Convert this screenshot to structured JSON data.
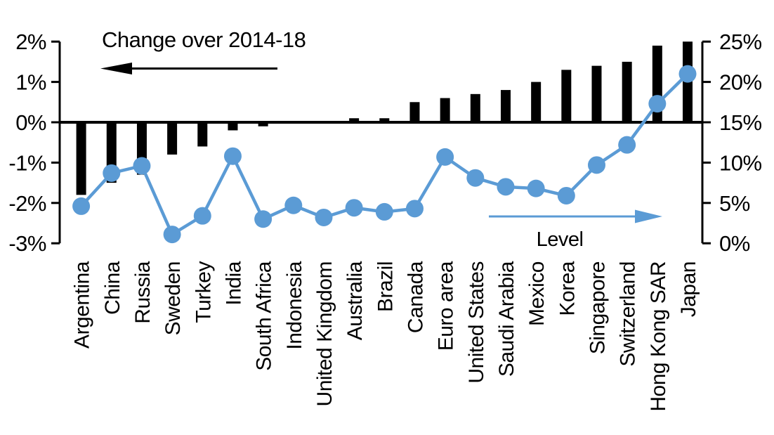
{
  "page": {
    "background": "#FFFFFF"
  },
  "chart_data": {
    "type": "combo",
    "title": "",
    "categories": [
      "Argentina",
      "China",
      "Russia",
      "Sweden",
      "Turkey",
      "India",
      "South Africa",
      "Indonesia",
      "United Kingdom",
      "Australia",
      "Brazil",
      "Canada",
      "Euro area",
      "United States",
      "Saudi Arabia",
      "Mexico",
      "Korea",
      "Singapore",
      "Switzerland",
      "Hong Kong SAR",
      "Japan"
    ],
    "series": [
      {
        "name": "Change over 2014-18",
        "type": "bar",
        "axis": "left",
        "color": "#000000",
        "values": [
          -1.8,
          -1.5,
          -1.3,
          -0.8,
          -0.6,
          -0.2,
          -0.1,
          0,
          0,
          0.1,
          0.1,
          0.5,
          0.6,
          0.7,
          0.8,
          1.0,
          1.3,
          1.4,
          1.5,
          1.9,
          2.0
        ]
      },
      {
        "name": "Level",
        "type": "line",
        "axis": "right",
        "color": "#5B9BD5",
        "values": [
          4.6,
          8.7,
          9.6,
          1.1,
          3.4,
          10.8,
          3.0,
          4.7,
          3.2,
          4.4,
          3.9,
          4.3,
          10.7,
          8.1,
          7.0,
          6.8,
          5.9,
          9.7,
          12.2,
          17.3,
          21.0
        ]
      }
    ],
    "left_axis": {
      "min": -3,
      "max": 2,
      "unit": "%",
      "tick_values": [
        2,
        1,
        0,
        -1,
        -2,
        -3
      ],
      "tick_labels": [
        "2%",
        "1%",
        "0%",
        "-1%",
        "-2%",
        "-3%"
      ]
    },
    "right_axis": {
      "min": 0,
      "max": 25,
      "unit": "%",
      "tick_values": [
        25,
        20,
        15,
        10,
        5,
        0
      ],
      "tick_labels": [
        "25%",
        "20%",
        "15%",
        "10%",
        "5%",
        "0%"
      ]
    },
    "grid": false,
    "legend_position": "none",
    "annotations": [
      {
        "text": "Change over 2014-18",
        "arrow": "left",
        "color": "#000000"
      },
      {
        "text": "Level",
        "arrow": "right",
        "color": "#5B9BD5"
      }
    ]
  }
}
